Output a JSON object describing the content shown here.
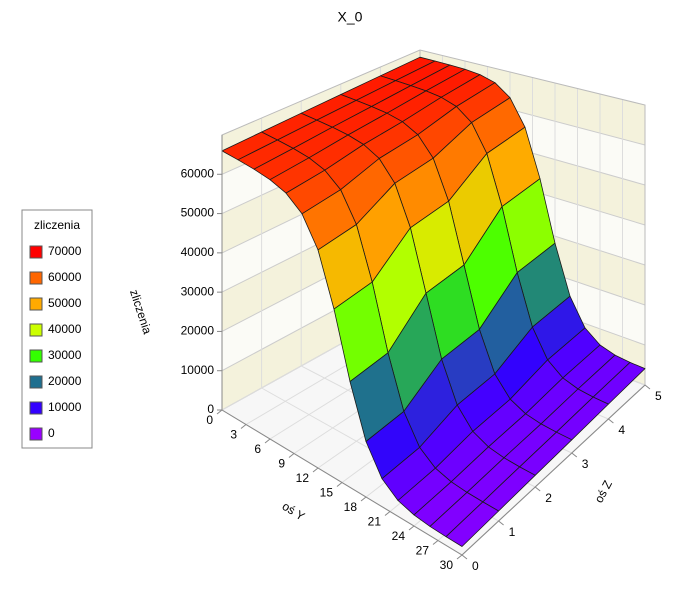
{
  "chart_data": {
    "type": "surface",
    "title": "X_0",
    "xlabel": "oś Y",
    "zlabel": "oś Z",
    "vlabel": "zliczenia",
    "x": [
      0,
      2,
      4,
      6,
      8,
      10,
      12,
      14,
      16,
      18,
      20,
      22,
      24,
      26,
      28,
      30
    ],
    "z": [
      0,
      1,
      2,
      3,
      4,
      5
    ],
    "values": [
      [
        65960,
        65900,
        65740,
        65300,
        64120,
        61140,
        54330,
        41840,
        26160,
        13670,
        6860,
        3880,
        2700,
        2260,
        2100,
        2040
      ],
      [
        66360,
        66300,
        66140,
        65700,
        64520,
        61540,
        54730,
        42240,
        26560,
        14070,
        7260,
        4280,
        3100,
        2660,
        2500,
        2440
      ],
      [
        66780,
        66740,
        66640,
        66370,
        65650,
        63770,
        59170,
        49590,
        34800,
        20010,
        10430,
        5830,
        3950,
        3230,
        2960,
        2860
      ],
      [
        67180,
        67140,
        67040,
        66770,
        66050,
        64170,
        59570,
        49990,
        35200,
        20410,
        10830,
        6230,
        4350,
        3630,
        3360,
        3260
      ],
      [
        67590,
        67560,
        67500,
        67340,
        66900,
        65720,
        62740,
        55930,
        43440,
        27760,
        15270,
        8460,
        5480,
        4300,
        3860,
        3700
      ],
      [
        67990,
        67960,
        67900,
        67740,
        67300,
        66120,
        63140,
        56330,
        43840,
        28160,
        15670,
        8860,
        5880,
        4700,
        4260,
        4100
      ]
    ],
    "xlim": [
      0,
      30
    ],
    "xticks": [
      0,
      3,
      6,
      9,
      12,
      15,
      18,
      21,
      24,
      27,
      30
    ],
    "zlim": [
      0,
      5
    ],
    "zticks": [
      0,
      1,
      2,
      3,
      4,
      5
    ],
    "vlim": [
      0,
      70000
    ],
    "vticks": [
      0,
      10000,
      20000,
      30000,
      40000,
      50000,
      60000
    ],
    "grid": true,
    "legend": {
      "title": "zliczenia",
      "levels": [
        70000,
        60000,
        50000,
        40000,
        30000,
        20000,
        10000,
        0
      ],
      "colors": [
        "#ff0000",
        "#ff6600",
        "#ffaa00",
        "#ccff00",
        "#33ff00",
        "#1f6f8f",
        "#3300ff",
        "#9900ff"
      ]
    }
  }
}
